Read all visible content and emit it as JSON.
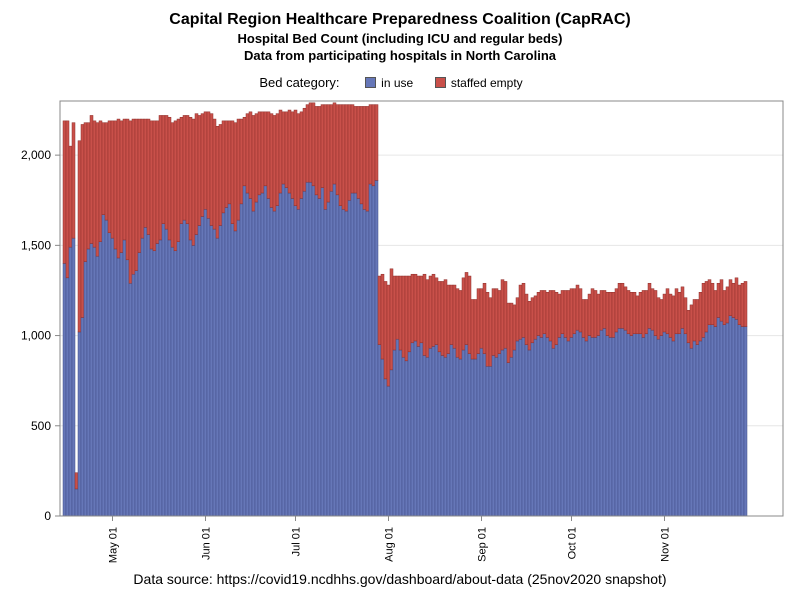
{
  "chart_data": {
    "type": "bar",
    "stacked": true,
    "title": "Capital Region Healthcare Preparedness Coalition (CapRAC)",
    "subtitle_1": "Hospital Bed Count (including ICU and regular beds)",
    "subtitle_2": "Data from participating hospitals in North Carolina",
    "legend": {
      "label": "Bed category:",
      "placement": "top-center",
      "entries": [
        {
          "name": "in use",
          "color": "#6677B8"
        },
        {
          "name": "staffed empty",
          "color": "#C9504A"
        }
      ]
    },
    "x_start": "2020-04-15",
    "xtick_labels": [
      "May 01",
      "Jun 01",
      "Jul 01",
      "Aug 01",
      "Sep 01",
      "Oct 01",
      "Nov 01"
    ],
    "xtick_dates": [
      "2020-05-01",
      "2020-06-01",
      "2020-07-01",
      "2020-08-01",
      "2020-09-01",
      "2020-10-01",
      "2020-11-01"
    ],
    "yticks": [
      0,
      500,
      1000,
      1500,
      2000
    ],
    "ytick_labels": [
      "0",
      "500",
      "1,000",
      "1,500",
      "2,000"
    ],
    "ylim": [
      0,
      2300
    ],
    "grid": "horizontal",
    "series": [
      {
        "name": "in use",
        "values": [
          1400,
          1320,
          1490,
          1540,
          150,
          1020,
          1100,
          1410,
          1480,
          1510,
          1490,
          1440,
          1520,
          1670,
          1640,
          1570,
          1540,
          1480,
          1430,
          1460,
          1530,
          1420,
          1290,
          1340,
          1360,
          1460,
          1540,
          1600,
          1560,
          1480,
          1470,
          1510,
          1530,
          1620,
          1590,
          1530,
          1490,
          1470,
          1520,
          1620,
          1640,
          1620,
          1530,
          1500,
          1560,
          1610,
          1660,
          1700,
          1650,
          1610,
          1590,
          1540,
          1610,
          1680,
          1710,
          1730,
          1620,
          1580,
          1640,
          1730,
          1830,
          1790,
          1760,
          1690,
          1740,
          1780,
          1790,
          1830,
          1760,
          1710,
          1690,
          1720,
          1790,
          1840,
          1820,
          1790,
          1760,
          1720,
          1700,
          1760,
          1800,
          1850,
          1850,
          1830,
          1780,
          1760,
          1820,
          1700,
          1740,
          1800,
          1840,
          1780,
          1720,
          1700,
          1690,
          1750,
          1790,
          1790,
          1760,
          1730,
          1700,
          1690,
          1840,
          1830,
          1860,
          950,
          870,
          760,
          720,
          810,
          920,
          980,
          920,
          880,
          860,
          910,
          960,
          970,
          940,
          960,
          890,
          880,
          930,
          940,
          950,
          910,
          890,
          880,
          900,
          950,
          930,
          880,
          870,
          920,
          950,
          900,
          870,
          870,
          900,
          930,
          900,
          830,
          830,
          890,
          880,
          900,
          920,
          930,
          850,
          880,
          920,
          970,
          980,
          990,
          950,
          920,
          960,
          980,
          1000,
          990,
          1010,
          990,
          970,
          930,
          950,
          990,
          1010,
          990,
          970,
          990,
          1010,
          1030,
          1020,
          990,
          970,
          1000,
          990,
          990,
          1000,
          1030,
          1040,
          1000,
          990,
          990,
          1020,
          1040,
          1040,
          1030,
          1010,
          1000,
          1010,
          1010,
          1010,
          990,
          1010,
          1040,
          1030,
          1000,
          980,
          1000,
          1020,
          1010,
          990,
          970,
          1010,
          1010,
          1040,
          1010,
          960,
          930,
          970,
          950,
          970,
          990,
          1020,
          1060,
          1060,
          1050,
          1100,
          1080,
          1060,
          1070,
          1110,
          1100,
          1090,
          1060,
          1050,
          1050
        ]
      },
      {
        "name": "staffed empty",
        "values": [
          790,
          870,
          560,
          640,
          90,
          1060,
          1070,
          770,
          700,
          710,
          700,
          740,
          670,
          510,
          540,
          620,
          650,
          710,
          770,
          730,
          670,
          780,
          900,
          860,
          840,
          740,
          660,
          600,
          640,
          710,
          720,
          680,
          690,
          600,
          630,
          680,
          690,
          720,
          680,
          590,
          580,
          600,
          680,
          700,
          670,
          610,
          570,
          540,
          590,
          620,
          610,
          620,
          560,
          510,
          480,
          460,
          570,
          600,
          560,
          470,
          380,
          440,
          480,
          530,
          490,
          460,
          450,
          410,
          480,
          520,
          530,
          510,
          460,
          400,
          420,
          460,
          480,
          530,
          530,
          480,
          460,
          430,
          440,
          460,
          490,
          510,
          460,
          580,
          540,
          480,
          450,
          500,
          560,
          580,
          590,
          530,
          490,
          480,
          510,
          540,
          570,
          580,
          440,
          450,
          420,
          380,
          470,
          540,
          560,
          560,
          410,
          350,
          410,
          450,
          470,
          420,
          380,
          370,
          390,
          370,
          450,
          430,
          400,
          400,
          370,
          390,
          410,
          430,
          380,
          330,
          350,
          380,
          380,
          400,
          400,
          430,
          330,
          330,
          360,
          330,
          390,
          410,
          380,
          370,
          380,
          350,
          390,
          370,
          330,
          300,
          250,
          240,
          300,
          300,
          280,
          270,
          250,
          240,
          240,
          260,
          240,
          250,
          280,
          320,
          290,
          240,
          240,
          260,
          280,
          270,
          250,
          250,
          240,
          210,
          230,
          230,
          270,
          260,
          230,
          220,
          210,
          240,
          250,
          250,
          240,
          250,
          250,
          240,
          240,
          240,
          230,
          210,
          230,
          260,
          240,
          250,
          230,
          250,
          230,
          200,
          210,
          250,
          240,
          250,
          250,
          230,
          230,
          200,
          180,
          240,
          230,
          250,
          270,
          300,
          280,
          250,
          230,
          200,
          190,
          230,
          190,
          200,
          200,
          190,
          230,
          220,
          240,
          250,
          220
        ]
      }
    ]
  },
  "footer": {
    "source_text": "Data source: https://covid19.ncdhhs.gov/dashboard/about-data (25nov2020 snapshot)"
  },
  "colors": {
    "in_use": "#6677B8",
    "staffed_empty": "#C9504A",
    "bar_edge_in_use": "#3F4C86",
    "bar_edge_empty": "#8E2E2A",
    "gridline": "#E6E6E6",
    "axis": "#888888"
  }
}
